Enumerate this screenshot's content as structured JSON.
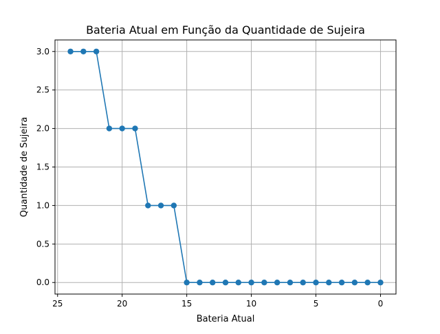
{
  "chart_data": {
    "type": "line",
    "title": "Bateria Atual em Função da Quantidade de Sujeira",
    "xlabel": "Bateria Atual",
    "ylabel": "Quantidade de Sujeira",
    "xlim": [
      25.2,
      -1.2
    ],
    "ylim": [
      -0.15,
      3.15
    ],
    "x_inverted": true,
    "grid": true,
    "xticks": [
      25,
      20,
      15,
      10,
      5,
      0
    ],
    "yticks": [
      0.0,
      0.5,
      1.0,
      1.5,
      2.0,
      2.5,
      3.0
    ],
    "xtick_labels": [
      "25",
      "20",
      "15",
      "10",
      "5",
      "0"
    ],
    "ytick_labels": [
      "0.0",
      "0.5",
      "1.0",
      "1.5",
      "2.0",
      "2.5",
      "3.0"
    ],
    "series": [
      {
        "color": "#1f77b4",
        "marker": "circle",
        "x": [
          24,
          23,
          22,
          21,
          20,
          19,
          18,
          17,
          16,
          15,
          14,
          13,
          12,
          11,
          10,
          9,
          8,
          7,
          6,
          5,
          4,
          3,
          2,
          1,
          0
        ],
        "y": [
          3,
          3,
          3,
          2,
          2,
          2,
          1,
          1,
          1,
          0,
          0,
          0,
          0,
          0,
          0,
          0,
          0,
          0,
          0,
          0,
          0,
          0,
          0,
          0,
          0
        ]
      }
    ]
  }
}
